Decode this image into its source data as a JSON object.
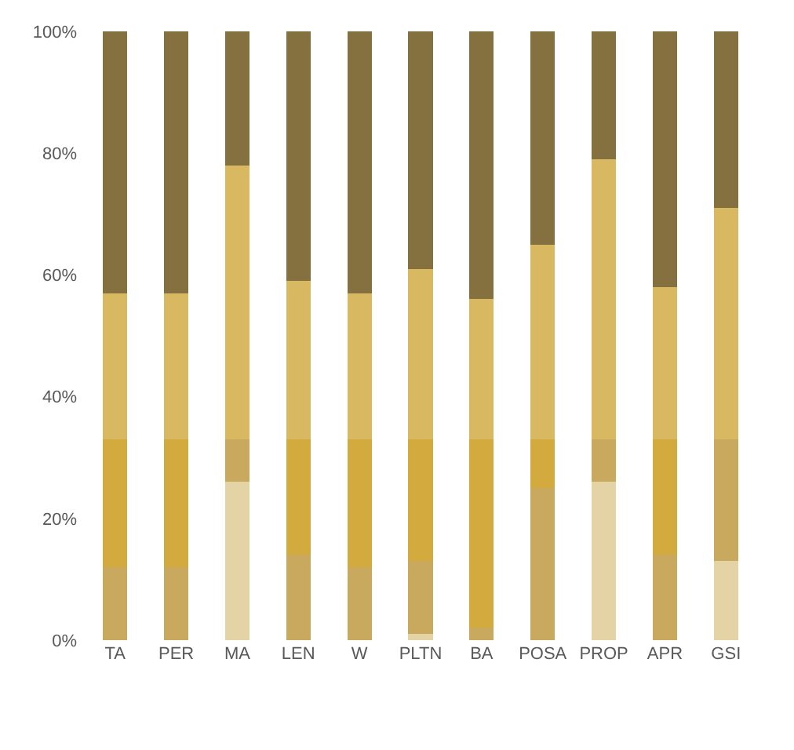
{
  "chart_data": {
    "type": "bar",
    "stacked": true,
    "categories": [
      "TA",
      "PER",
      "MA",
      "LEN",
      "W",
      "PLTN",
      "BA",
      "POSA",
      "PROP",
      "APR",
      "GSI"
    ],
    "series": [
      {
        "color": "#e4d3a4",
        "values": [
          0,
          0,
          26,
          0,
          0,
          1,
          0,
          0,
          26,
          0,
          13
        ]
      },
      {
        "color": "#c9a95e",
        "values": [
          12,
          12,
          7,
          14,
          12,
          12,
          2,
          25,
          7,
          14,
          20
        ]
      },
      {
        "color": "#d3aa3e",
        "values": [
          21,
          21,
          0,
          19,
          21,
          20,
          31,
          8,
          0,
          19,
          0
        ]
      },
      {
        "color": "#d8b962",
        "values": [
          24,
          24,
          45,
          26,
          24,
          28,
          23,
          32,
          46,
          25,
          38
        ]
      },
      {
        "color": "#857140",
        "values": [
          43,
          43,
          22,
          41,
          43,
          39,
          44,
          35,
          21,
          42,
          29
        ]
      }
    ],
    "ylim": [
      0,
      100
    ],
    "yticks": [
      {
        "value": 0,
        "label": "0%"
      },
      {
        "value": 20,
        "label": "20%"
      },
      {
        "value": 40,
        "label": "40%"
      },
      {
        "value": 60,
        "label": "60%"
      },
      {
        "value": 80,
        "label": "80%"
      },
      {
        "value": 100,
        "label": "100%"
      }
    ],
    "grid": false
  }
}
